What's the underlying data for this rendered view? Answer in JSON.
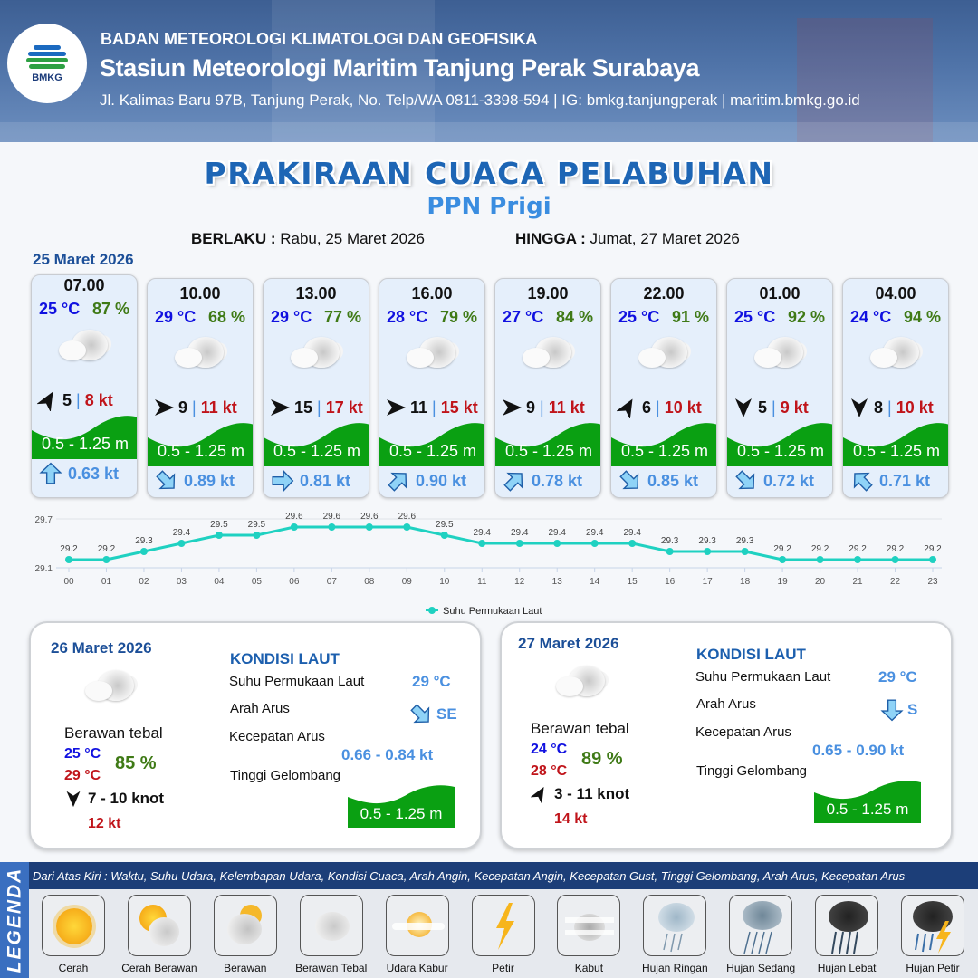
{
  "header": {
    "logo_text": "BMKG",
    "agency": "BADAN METEOROLOGI KLIMATOLOGI DAN GEOFISIKA",
    "station": "Stasiun Meteorologi Maritim Tanjung Perak Surabaya",
    "contact": "Jl. Kalimas Baru 97B, Tanjung Perak, No. Telp/WA 0811-3398-594 | IG: bmkg.tanjungperak | maritim.bmkg.go.id"
  },
  "title": "PRAKIRAAN CUACA PELABUHAN",
  "subtitle": "PPN Prigi",
  "validity": {
    "from_label": "BERLAKU :",
    "from_value": "Rabu, 25 Maret 2026",
    "to_label": "HINGGA :",
    "to_value": "Jumat, 27 Maret 2026"
  },
  "day1": {
    "date": "25 Maret 2026",
    "forecasts": [
      {
        "time": "07.00",
        "temp": "25 °C",
        "humidity": "87 %",
        "weather": "Berawan Tebal",
        "wind_dir": "NE",
        "wind_speed": "5",
        "gust": "8 kt",
        "wave": "0.5 - 1.25 m",
        "current_dir": "N",
        "current_speed": "0.63 kt"
      },
      {
        "time": "10.00",
        "temp": "29 °C",
        "humidity": "68 %",
        "weather": "Berawan Tebal",
        "wind_dir": "E",
        "wind_speed": "9",
        "gust": "11 kt",
        "wave": "0.5 - 1.25 m",
        "current_dir": "SE",
        "current_speed": "0.89 kt"
      },
      {
        "time": "13.00",
        "temp": "29 °C",
        "humidity": "77 %",
        "weather": "Berawan Tebal",
        "wind_dir": "E",
        "wind_speed": "15",
        "gust": "17 kt",
        "wave": "0.5 - 1.25 m",
        "current_dir": "E",
        "current_speed": "0.81 kt"
      },
      {
        "time": "16.00",
        "temp": "28 °C",
        "humidity": "79 %",
        "weather": "Berawan Tebal",
        "wind_dir": "E",
        "wind_speed": "11",
        "gust": "15 kt",
        "wave": "0.5 - 1.25 m",
        "current_dir": "NE",
        "current_speed": "0.90 kt"
      },
      {
        "time": "19.00",
        "temp": "27 °C",
        "humidity": "84 %",
        "weather": "Berawan Tebal",
        "wind_dir": "E",
        "wind_speed": "9",
        "gust": "11 kt",
        "wave": "0.5 - 1.25 m",
        "current_dir": "NE",
        "current_speed": "0.78 kt"
      },
      {
        "time": "22.00",
        "temp": "25 °C",
        "humidity": "91 %",
        "weather": "Berawan Tebal",
        "wind_dir": "NE",
        "wind_speed": "6",
        "gust": "10 kt",
        "wave": "0.5 - 1.25 m",
        "current_dir": "SE",
        "current_speed": "0.85 kt"
      },
      {
        "time": "01.00",
        "temp": "25 °C",
        "humidity": "92 %",
        "weather": "Berawan Tebal",
        "wind_dir": "S",
        "wind_speed": "5",
        "gust": "9 kt",
        "wave": "0.5 - 1.25 m",
        "current_dir": "SE",
        "current_speed": "0.72 kt"
      },
      {
        "time": "04.00",
        "temp": "24 °C",
        "humidity": "94 %",
        "weather": "Berawan Tebal",
        "wind_dir": "S",
        "wind_speed": "8",
        "gust": "10 kt",
        "wave": "0.5 - 1.25 m",
        "current_dir": "NW",
        "current_speed": "0.71 kt"
      }
    ]
  },
  "chart_data": {
    "type": "line",
    "x": [
      "00",
      "01",
      "02",
      "03",
      "04",
      "05",
      "06",
      "07",
      "08",
      "09",
      "10",
      "11",
      "12",
      "13",
      "14",
      "15",
      "16",
      "17",
      "18",
      "19",
      "20",
      "21",
      "22",
      "23"
    ],
    "series": [
      {
        "name": "Suhu Permukaan Laut",
        "values": [
          29.2,
          29.2,
          29.3,
          29.4,
          29.5,
          29.5,
          29.6,
          29.6,
          29.6,
          29.6,
          29.5,
          29.4,
          29.4,
          29.4,
          29.4,
          29.4,
          29.3,
          29.3,
          29.3,
          29.2,
          29.2,
          29.2,
          29.2,
          29.2
        ],
        "color": "#1fd1c1"
      }
    ],
    "yticks": [
      "29.1",
      "29.7"
    ],
    "ylim": [
      29.1,
      29.7
    ],
    "legend": "bottom",
    "grid": true
  },
  "days": [
    {
      "date": "26 Maret 2026",
      "weather": "Berawan tebal",
      "temp_min": "25 °C",
      "temp_max": "29 °C",
      "humidity": "85 %",
      "wind_dir": "S",
      "wind": "7  - 10 knot",
      "gust": "12 kt",
      "sea_title": "KONDISI LAUT",
      "sst_label": "Suhu Permukaan Laut",
      "sst": "29 °C",
      "current_dir_label": "Arah Arus",
      "current_dir": "SE",
      "current_speed_label": "Kecepatan Arus",
      "current_speed": "0.66  - 0.84 kt",
      "wave_label": "Tinggi Gelombang",
      "wave": "0.5 - 1.25 m"
    },
    {
      "date": "27 Maret 2026",
      "weather": "Berawan tebal",
      "temp_min": "24 °C",
      "temp_max": "28 °C",
      "humidity": "89 %",
      "wind_dir": "NE",
      "wind": "3  - 11 knot",
      "gust": "14 kt",
      "sea_title": "KONDISI LAUT",
      "sst_label": "Suhu Permukaan Laut",
      "sst": "29 °C",
      "current_dir_label": "Arah Arus",
      "current_dir": "S",
      "current_speed_label": "Kecepatan Arus",
      "current_speed": "0.65 - 0.90 kt",
      "wave_label": "Tinggi Gelombang",
      "wave": "0.5 - 1.25 m"
    }
  ],
  "legend": {
    "title": "LEGENDA",
    "description": "Dari Atas Kiri : Waktu, Suhu Udara, Kelembapan Udara, Kondisi Cuaca, Arah Angin, Kecepatan Angin, Kecepatan Gust, Tinggi Gelombang, Arah Arus, Kecepatan Arus",
    "items": [
      {
        "label": "Cerah",
        "icon": "sun-icon"
      },
      {
        "label": "Cerah Berawan",
        "icon": "sun-cloud-icon"
      },
      {
        "label": "Berawan",
        "icon": "cloudy-icon"
      },
      {
        "label": "Berawan Tebal",
        "icon": "overcast-icon"
      },
      {
        "label": "Udara Kabur",
        "icon": "haze-icon"
      },
      {
        "label": "Petir",
        "icon": "lightning-icon"
      },
      {
        "label": "Kabut",
        "icon": "fog-icon"
      },
      {
        "label": "Hujan Ringan",
        "icon": "light-rain-icon"
      },
      {
        "label": "Hujan Sedang",
        "icon": "moderate-rain-icon"
      },
      {
        "label": "Hujan Lebat",
        "icon": "heavy-rain-icon"
      },
      {
        "label": "Hujan Petir",
        "icon": "thunderstorm-icon"
      }
    ]
  },
  "colors": {
    "wave_green": "#0aa012",
    "title_blue": "#1e66b5",
    "temp_blue": "#1010e0",
    "humidity_green": "#3f7a16",
    "gust_red": "#c0141a",
    "current_blue": "#4a90e0",
    "legend_bg": "#1c3e78"
  }
}
